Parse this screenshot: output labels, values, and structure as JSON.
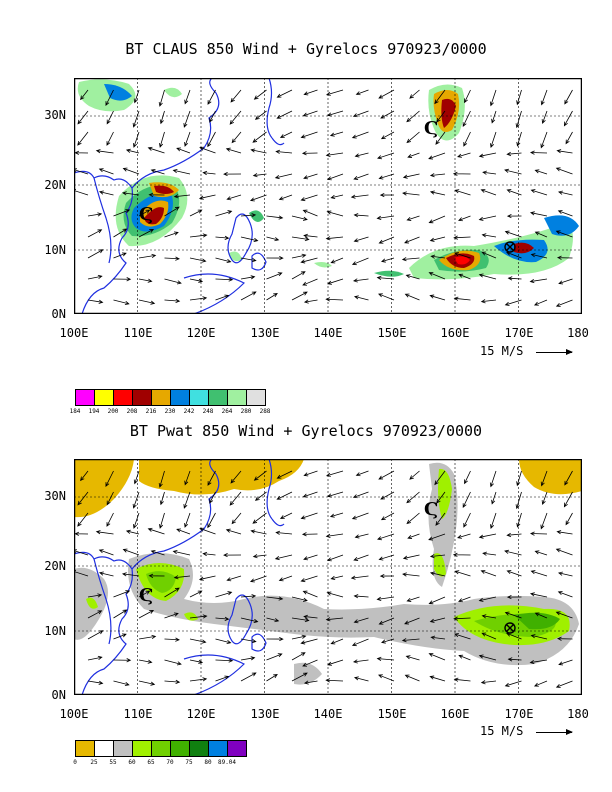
{
  "panels": [
    {
      "id": "claus",
      "title": "BT CLAUS 850 Wind + Gyrelocs 970923/0000",
      "lat_labels": [
        "30N",
        "20N",
        "10N",
        "0N"
      ],
      "lon_labels": [
        "100E",
        "110E",
        "120E",
        "130E",
        "140E",
        "150E",
        "160E",
        "170E",
        "180"
      ],
      "ref_vector_label": "15 M/S",
      "colorbar": {
        "colors": [
          "#ff00ff",
          "#ffff00",
          "#ff0000",
          "#a00000",
          "#e6a800",
          "#0080e0",
          "#40e0e0",
          "#40c070",
          "#a0f0a0",
          "#e0e0e0"
        ],
        "labels": [
          "184",
          "194",
          "200",
          "208",
          "216",
          "230",
          "242",
          "248",
          "264",
          "280",
          "288"
        ]
      }
    },
    {
      "id": "pwat",
      "title": "BT Pwat 850 Wind + Gyrelocs 970923/0000",
      "lat_labels": [
        "30N",
        "20N",
        "10N",
        "0N"
      ],
      "lon_labels": [
        "100E",
        "110E",
        "120E",
        "130E",
        "140E",
        "150E",
        "160E",
        "170E",
        "180"
      ],
      "ref_vector_label": "15 M/S",
      "colorbar": {
        "colors": [
          "#e6b800",
          "#ffffff",
          "#c0c0c0",
          "#a0f000",
          "#70d000",
          "#40b000",
          "#108010",
          "#0080e0",
          "#8000c0"
        ],
        "labels": [
          "0",
          "25",
          "55",
          "60",
          "65",
          "70",
          "75",
          "80",
          "89.04"
        ]
      }
    }
  ]
}
